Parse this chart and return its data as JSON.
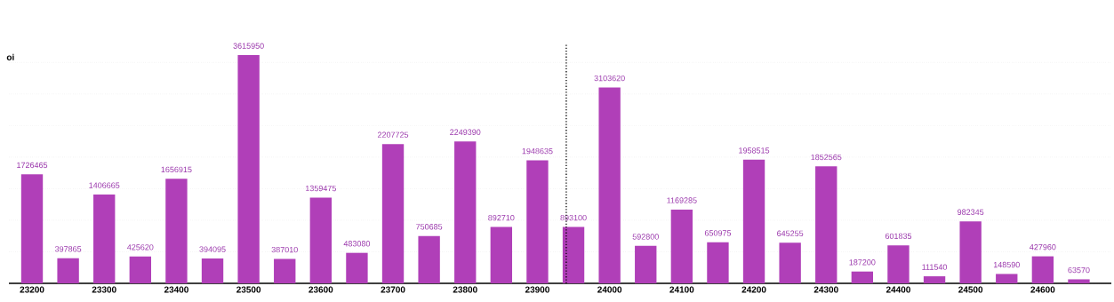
{
  "chart_data": {
    "type": "bar",
    "ylabel": "oi",
    "x": [
      23200,
      23250,
      23300,
      23350,
      23400,
      23450,
      23500,
      23550,
      23600,
      23650,
      23700,
      23750,
      23800,
      23850,
      23900,
      23950,
      24000,
      24050,
      24100,
      24150,
      24200,
      24250,
      24300,
      24350,
      24400,
      24450,
      24500,
      24550,
      24600,
      24650
    ],
    "values": [
      1726465,
      397865,
      1406665,
      425620,
      1656915,
      394095,
      3615950,
      387010,
      1359475,
      483080,
      2207725,
      750685,
      2249390,
      892710,
      1948635,
      893100,
      3103620,
      592800,
      1169285,
      650975,
      1958515,
      645255,
      1852565,
      187200,
      601835,
      111540,
      982345,
      148590,
      427960,
      63570
    ],
    "color": "#b03fb8",
    "data_labels": true,
    "xlim": [
      23168,
      24695
    ],
    "xticks": [
      23200,
      23300,
      23400,
      23500,
      23600,
      23700,
      23800,
      23900,
      24000,
      24100,
      24200,
      24300,
      24400,
      24500,
      24600
    ],
    "ylim": [
      0,
      3800000
    ],
    "tick_labels": "x",
    "grid": "y",
    "ref_lines": [
      {
        "axis": "x",
        "value": 23940,
        "line_style": "dotted",
        "color": "#000000"
      }
    ]
  }
}
